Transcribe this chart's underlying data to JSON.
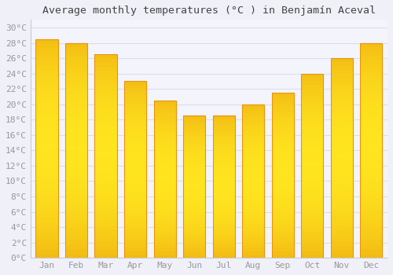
{
  "title": "Average monthly temperatures (°C ) in Benjamín Aceval",
  "months": [
    "Jan",
    "Feb",
    "Mar",
    "Apr",
    "May",
    "Jun",
    "Jul",
    "Aug",
    "Sep",
    "Oct",
    "Nov",
    "Dec"
  ],
  "temperatures": [
    28.5,
    28.0,
    26.5,
    23.0,
    20.5,
    18.5,
    18.5,
    20.0,
    21.5,
    24.0,
    26.0,
    28.0
  ],
  "bar_color_center": "#FFD966",
  "bar_color_edge": "#E8950A",
  "background_color": "#F0F0F8",
  "plot_bg_color": "#F4F4FC",
  "grid_color": "#DDDDEE",
  "ylim": [
    0,
    31
  ],
  "ytick_step": 2,
  "title_fontsize": 9.5,
  "tick_fontsize": 8,
  "tick_color": "#999999",
  "spine_color": "#CCCCCC",
  "bar_width": 0.75
}
